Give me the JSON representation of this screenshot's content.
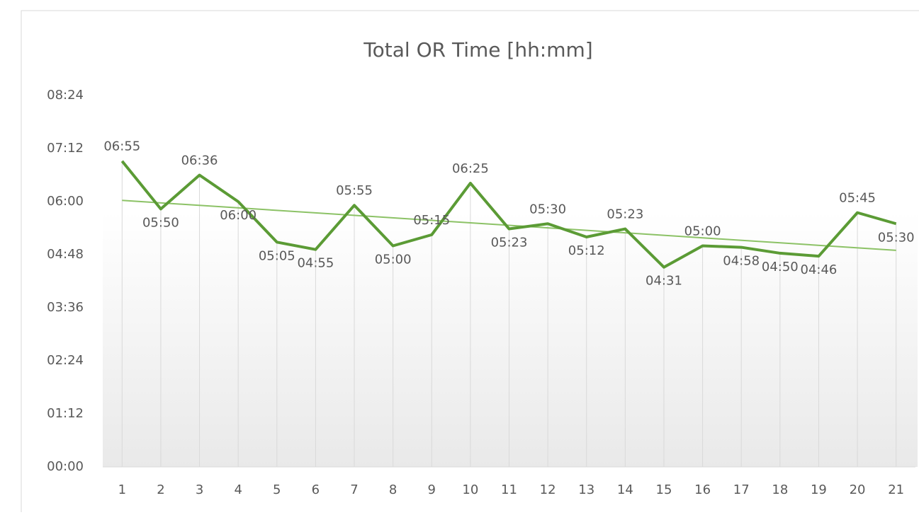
{
  "chart_data": {
    "type": "line",
    "title": "Total OR Time [hh:mm]",
    "categories": [
      1,
      2,
      3,
      4,
      5,
      6,
      7,
      8,
      9,
      10,
      11,
      12,
      13,
      14,
      15,
      16,
      17,
      18,
      19,
      20,
      21
    ],
    "series": [
      {
        "name": "Total OR Time",
        "color": "#5b9b35",
        "values": [
          415,
          350,
          396,
          360,
          305,
          295,
          355,
          300,
          315,
          385,
          323,
          330,
          312,
          323,
          271,
          300,
          298,
          290,
          286,
          345,
          330
        ],
        "value_labels": [
          "06:55",
          "05:50",
          "06:36",
          "06:00",
          "05:05",
          "04:55",
          "05:55",
          "05:00",
          "05:15",
          "06:25",
          "05:23",
          "05:30",
          "05:12",
          "05:23",
          "04:31",
          "05:00",
          "04:58",
          "04:50",
          "04:46",
          "05:45",
          "05:30"
        ]
      }
    ],
    "trendline": true,
    "trendline_color": "#8cc266",
    "ylim": [
      0,
      504
    ],
    "yticks": [
      {
        "value": 0,
        "label": "00:00"
      },
      {
        "value": 72,
        "label": "01:12"
      },
      {
        "value": 144,
        "label": "02:24"
      },
      {
        "value": 216,
        "label": "03:36"
      },
      {
        "value": 288,
        "label": "04:48"
      },
      {
        "value": 360,
        "label": "06:00"
      },
      {
        "value": 432,
        "label": "07:12"
      },
      {
        "value": 504,
        "label": "08:24"
      }
    ]
  }
}
